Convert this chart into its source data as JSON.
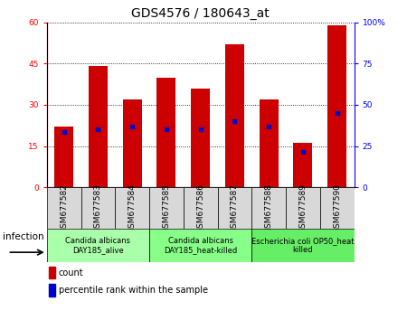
{
  "title": "GDS4576 / 180643_at",
  "samples": [
    "GSM677582",
    "GSM677583",
    "GSM677584",
    "GSM677585",
    "GSM677586",
    "GSM677587",
    "GSM677588",
    "GSM677589",
    "GSM677590"
  ],
  "counts": [
    22,
    44,
    32,
    40,
    36,
    52,
    32,
    16,
    59
  ],
  "percentile_values": [
    20,
    21,
    22,
    21,
    21,
    24,
    22,
    13,
    27
  ],
  "bar_color": "#cc0000",
  "dot_color": "#0000cc",
  "ylim_left": [
    0,
    60
  ],
  "ylim_right": [
    0,
    100
  ],
  "yticks_left": [
    0,
    15,
    30,
    45,
    60
  ],
  "ytick_labels_left": [
    "0",
    "15",
    "30",
    "45",
    "60"
  ],
  "yticks_right": [
    0,
    25,
    50,
    75,
    100
  ],
  "ytick_labels_right": [
    "0",
    "25",
    "50",
    "75",
    "100%"
  ],
  "groups": [
    {
      "label": "Candida albicans\nDAY185_alive",
      "start": 0,
      "end": 3,
      "color": "#aaffaa"
    },
    {
      "label": "Candida albicans\nDAY185_heat-killed",
      "start": 3,
      "end": 6,
      "color": "#88ff88"
    },
    {
      "label": "Escherichia coli OP50_heat\nkilled",
      "start": 6,
      "end": 9,
      "color": "#66ee66"
    }
  ],
  "infection_label": "infection",
  "legend_count_label": "count",
  "legend_pct_label": "percentile rank within the sample",
  "bar_width": 0.55,
  "title_fontsize": 10,
  "tick_label_fontsize": 6.5,
  "group_label_fontsize": 6,
  "infection_fontsize": 7.5,
  "legend_fontsize": 7
}
